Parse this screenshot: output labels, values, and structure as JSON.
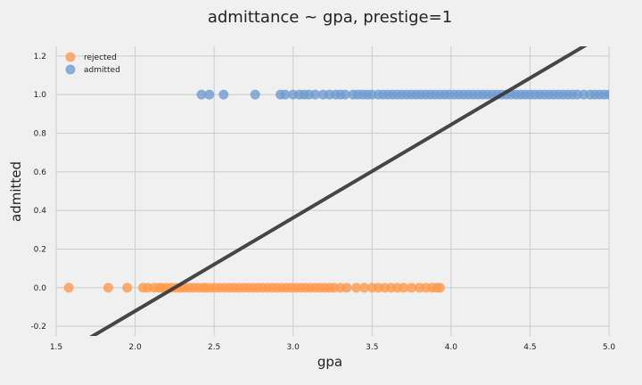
{
  "chart_data": {
    "type": "scatter",
    "title": "admittance ~ gpa, prestige=1",
    "xlabel": "gpa",
    "ylabel": "admitted",
    "xlim": [
      1.5,
      5.0
    ],
    "ylim": [
      -0.25,
      1.25
    ],
    "xticks": [
      1.5,
      2.0,
      2.5,
      3.0,
      3.5,
      4.0,
      4.5,
      5.0
    ],
    "xtick_labels": [
      "1.5",
      "2.0",
      "2.5",
      "3.0",
      "3.5",
      "4.0",
      "4.5",
      "5.0"
    ],
    "yticks": [
      -0.2,
      0.0,
      0.2,
      0.4,
      0.6,
      0.8,
      1.0,
      1.2
    ],
    "ytick_labels": [
      "-0.2",
      "0.0",
      "0.2",
      "0.4",
      "0.6",
      "0.8",
      "1.0",
      "1.2"
    ],
    "grid": true,
    "legend": {
      "placement": "top-left"
    },
    "series": [
      {
        "name": "rejected",
        "color": "#ff9a4d",
        "y": 0,
        "x": [
          1.58,
          1.83,
          1.95,
          2.05,
          2.08,
          2.12,
          2.15,
          2.17,
          2.2,
          2.23,
          2.26,
          2.29,
          2.31,
          2.34,
          2.37,
          2.4,
          2.43,
          2.45,
          2.48,
          2.51,
          2.54,
          2.57,
          2.6,
          2.63,
          2.66,
          2.69,
          2.72,
          2.75,
          2.78,
          2.81,
          2.84,
          2.87,
          2.9,
          2.93,
          2.96,
          2.99,
          3.02,
          3.05,
          3.08,
          3.11,
          3.14,
          3.17,
          3.2,
          3.23,
          3.26,
          3.3,
          3.34,
          3.4,
          3.45,
          3.5,
          3.54,
          3.58,
          3.62,
          3.66,
          3.7,
          3.75,
          3.8,
          3.84,
          3.88,
          3.91,
          3.93
        ]
      },
      {
        "name": "admitted",
        "color": "#6f9ccf",
        "y": 1,
        "x": [
          2.42,
          2.47,
          2.56,
          2.76,
          2.92,
          2.95,
          3.0,
          3.04,
          3.07,
          3.1,
          3.14,
          3.19,
          3.23,
          3.27,
          3.3,
          3.33,
          3.38,
          3.41,
          3.44,
          3.47,
          3.5,
          3.54,
          3.57,
          3.6,
          3.63,
          3.66,
          3.69,
          3.72,
          3.75,
          3.78,
          3.81,
          3.84,
          3.87,
          3.9,
          3.93,
          3.96,
          3.99,
          4.02,
          4.05,
          4.08,
          4.11,
          4.14,
          4.17,
          4.2,
          4.23,
          4.26,
          4.29,
          4.32,
          4.35,
          4.38,
          4.41,
          4.44,
          4.47,
          4.5,
          4.53,
          4.56,
          4.59,
          4.62,
          4.65,
          4.68,
          4.71,
          4.74,
          4.77,
          4.8,
          4.84,
          4.88,
          4.91,
          4.94,
          4.97,
          5.0
        ]
      }
    ],
    "fit_line": {
      "color": "#333333",
      "points": [
        [
          1.5,
          -0.362
        ],
        [
          5.0,
          1.327
        ]
      ]
    }
  }
}
